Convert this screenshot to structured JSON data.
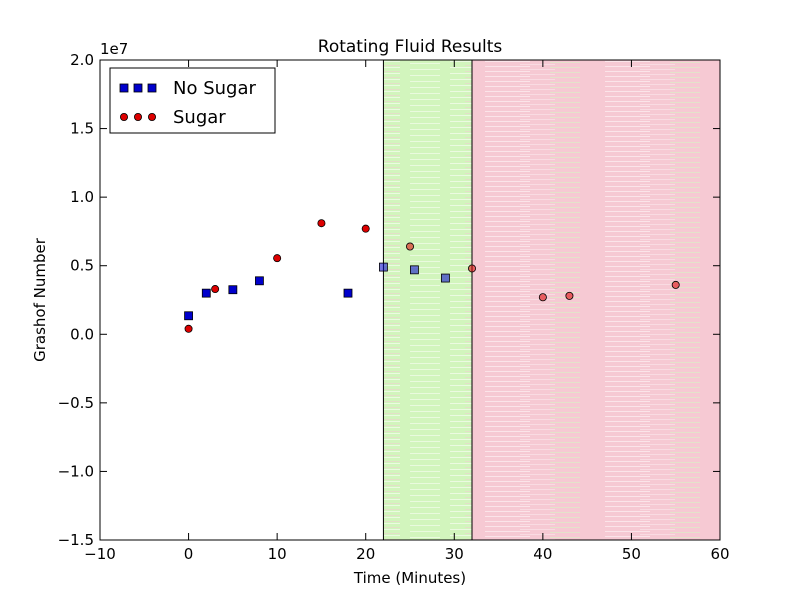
{
  "chart_data": {
    "type": "scatter",
    "title": "Rotating Fluid Results",
    "xlabel": "Time (Minutes)",
    "ylabel": "Grashof Number",
    "offset_label": "1e7",
    "xlim": [
      -10,
      60
    ],
    "ylim": [
      -1.5,
      2.0
    ],
    "xticks": [
      -10,
      0,
      10,
      20,
      30,
      40,
      50,
      60
    ],
    "yticks": [
      -1.5,
      -1.0,
      -0.5,
      0.0,
      0.5,
      1.0,
      1.5,
      2.0
    ],
    "ytick_labels": [
      "−1.5",
      "−1.0",
      "−0.5",
      "0.0",
      "0.5",
      "1.0",
      "1.5",
      "2.0"
    ],
    "xtick_labels": [
      "−10",
      "0",
      "10",
      "20",
      "30",
      "40",
      "50",
      "60"
    ],
    "grid": false,
    "legend_position": "top-left",
    "shaded_regions": [
      {
        "x": [
          22,
          32
        ],
        "color": "#ccf5b0"
      },
      {
        "x": [
          32,
          60
        ],
        "color": "#f7c6d0"
      }
    ],
    "series": [
      {
        "name": "No Sugar",
        "marker": "square",
        "color": "#0000cc",
        "x": [
          0,
          2,
          5,
          8,
          18,
          22,
          25.5,
          29
        ],
        "y": [
          0.135,
          0.3,
          0.325,
          0.39,
          0.3,
          0.49,
          0.47,
          0.41
        ]
      },
      {
        "name": "Sugar",
        "marker": "circle",
        "color": "#dd0000",
        "x": [
          0,
          3,
          10,
          15,
          20,
          25,
          32,
          40,
          43,
          55
        ],
        "y": [
          0.04,
          0.33,
          0.555,
          0.81,
          0.77,
          0.64,
          0.48,
          0.27,
          0.28,
          0.36
        ]
      }
    ]
  }
}
